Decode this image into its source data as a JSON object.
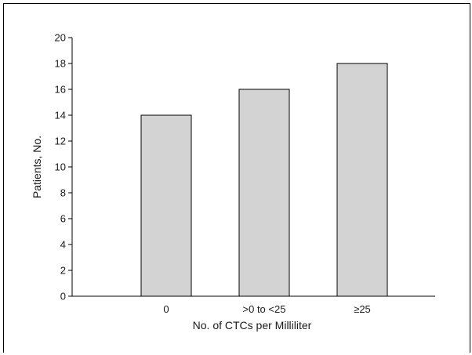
{
  "chart_data": {
    "type": "bar",
    "categories": [
      "0",
      ">0 to <25",
      "≥25"
    ],
    "values": [
      14,
      16,
      18
    ],
    "title": "",
    "xlabel": "No. of CTCs per Milliliter",
    "ylabel": "Patients, No.",
    "ylim": [
      0,
      20
    ],
    "yticks": [
      0,
      2,
      4,
      6,
      8,
      10,
      12,
      14,
      16,
      18,
      20
    ],
    "bar_color": "#d3d3d3",
    "grid": false,
    "legend": "none"
  }
}
